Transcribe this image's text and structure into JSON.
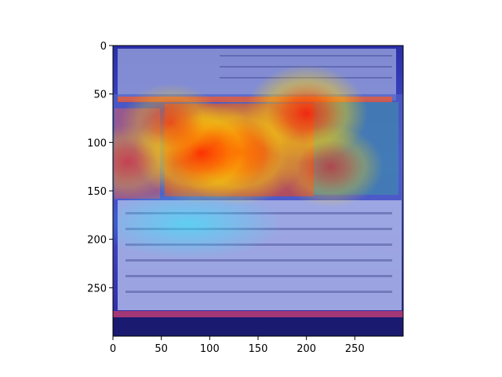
{
  "chart_data": {
    "type": "heatmap",
    "image": "heatmap overlay on a photo of a printed sushi restaurant menu",
    "x_ticks": [
      0,
      50,
      100,
      150,
      200,
      250
    ],
    "y_ticks": [
      0,
      50,
      100,
      150,
      200,
      250
    ],
    "xlim": [
      0,
      300
    ],
    "ylim": [
      300,
      0
    ],
    "hotspots": [
      {
        "x": 130,
        "y": 110,
        "strength": 1.0
      },
      {
        "x": 90,
        "y": 110,
        "strength": 0.95
      },
      {
        "x": 200,
        "y": 70,
        "strength": 0.85
      },
      {
        "x": 225,
        "y": 125,
        "strength": 0.6
      },
      {
        "x": 60,
        "y": 80,
        "strength": 0.55
      },
      {
        "x": 15,
        "y": 120,
        "strength": 0.45
      }
    ],
    "colormap": "jet",
    "colors": {
      "hot": "#ff2a00",
      "warm": "#ffd400",
      "mid": "#2cc8ff",
      "cold": "#2a1fb0"
    }
  }
}
